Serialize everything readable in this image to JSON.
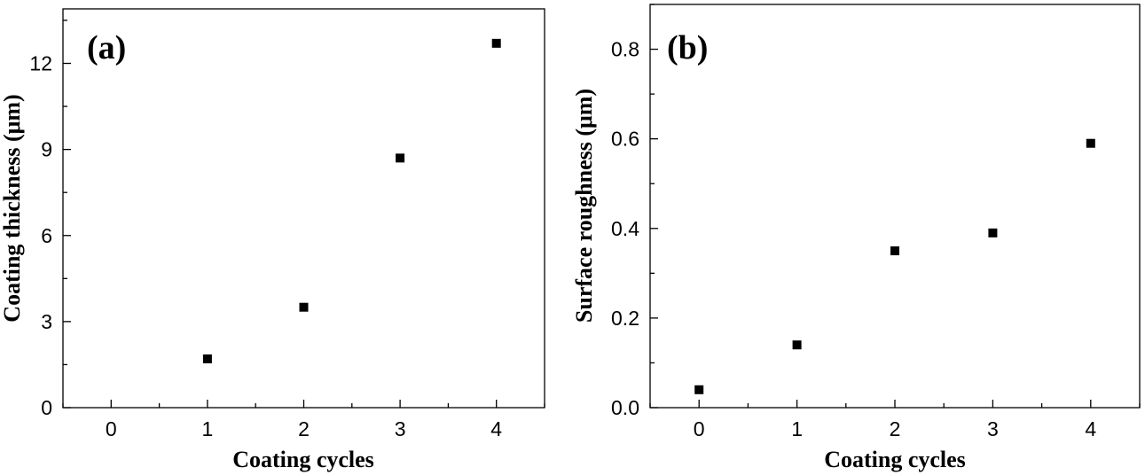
{
  "chart_data": [
    {
      "type": "scatter",
      "panel_label": "(a)",
      "xlabel": "Coating cycles",
      "ylabel": "Coating thickness (μm)",
      "xlim": [
        -0.5,
        4.5
      ],
      "ylim": [
        0,
        13.9
      ],
      "xticks": [
        0,
        1,
        2,
        3,
        4
      ],
      "xtick_labels": [
        "0",
        "1",
        "2",
        "3",
        "4"
      ],
      "yticks": [
        0,
        3,
        6,
        9,
        12
      ],
      "ytick_labels": [
        "0",
        "3",
        "6",
        "9",
        "12"
      ],
      "x": [
        1,
        2,
        3,
        4
      ],
      "y": [
        1.7,
        3.5,
        8.7,
        12.7
      ],
      "marker": "square",
      "color": "#000000"
    },
    {
      "type": "scatter",
      "panel_label": "(b)",
      "xlabel": "Coating cycles",
      "ylabel": "Surface roughness (μm)",
      "xlim": [
        -0.5,
        4.5
      ],
      "ylim": [
        0,
        0.9
      ],
      "xticks": [
        0,
        1,
        2,
        3,
        4
      ],
      "xtick_labels": [
        "0",
        "1",
        "2",
        "3",
        "4"
      ],
      "yticks": [
        0,
        0.2,
        0.4,
        0.6,
        0.8
      ],
      "ytick_labels": [
        "0.0",
        "0.2",
        "0.4",
        "0.6",
        "0.8"
      ],
      "x": [
        0,
        1,
        2,
        3,
        4
      ],
      "y": [
        0.04,
        0.14,
        0.35,
        0.39,
        0.59
      ],
      "marker": "square",
      "color": "#000000"
    }
  ]
}
